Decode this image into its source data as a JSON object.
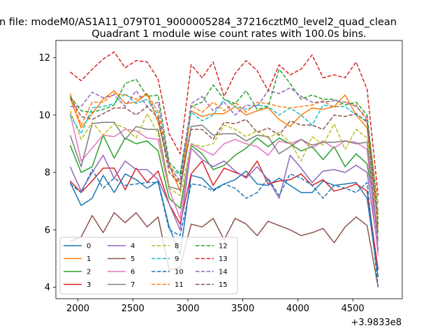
{
  "suptitle": "n file: modeM0/AS1A11_079T01_9000005284_37216cztM0_level2_quad_clean",
  "chart_data": {
    "type": "line",
    "title": "Quadrant 1 module wise count rates with 100.0s bins.",
    "xlabel": "",
    "ylabel": "",
    "x_offset_label": "+3.9833e8",
    "xlim": [
      1800,
      4950
    ],
    "ylim": [
      3.6,
      12.6
    ],
    "xticks": [
      "2000",
      "2500",
      "3000",
      "3500",
      "4000",
      "4500"
    ],
    "yticks": [
      "4",
      "6",
      "8",
      "10",
      "12"
    ],
    "grid": false,
    "legend_placement": "lower-left",
    "x": [
      1930,
      2030,
      2130,
      2230,
      2330,
      2430,
      2530,
      2630,
      2730,
      2830,
      2930,
      3030,
      3130,
      3230,
      3330,
      3430,
      3530,
      3630,
      3730,
      3830,
      3930,
      4030,
      4130,
      4230,
      4330,
      4430,
      4530,
      4630,
      4730
    ],
    "series": [
      {
        "name": "0",
        "color": "#1f77b4",
        "dash": "solid",
        "values": [
          7.65,
          6.85,
          7.1,
          7.9,
          7.3,
          7.95,
          7.75,
          7.45,
          7.7,
          6.1,
          5.15,
          7.9,
          7.8,
          7.4,
          7.6,
          7.75,
          8.05,
          7.6,
          7.55,
          7.8,
          7.55,
          7.3,
          7.3,
          7.7,
          7.55,
          7.6,
          7.65,
          7.1,
          4.35
        ]
      },
      {
        "name": "1",
        "color": "#ff7f0e",
        "dash": "solid",
        "values": [
          10.6,
          9.55,
          10.05,
          10.55,
          10.85,
          10.4,
          10.45,
          10.75,
          9.75,
          8.25,
          7.35,
          10.15,
          9.95,
          10.05,
          10.05,
          10.3,
          10.0,
          10.15,
          10.25,
          9.85,
          9.6,
          10.0,
          10.25,
          10.2,
          10.3,
          10.7,
          10.0,
          9.55,
          6.1
        ]
      },
      {
        "name": "2",
        "color": "#2ca02c",
        "dash": "solid",
        "values": [
          8.95,
          8.0,
          8.2,
          9.3,
          8.5,
          9.2,
          9.0,
          9.1,
          8.75,
          7.1,
          6.75,
          8.95,
          8.65,
          8.1,
          8.25,
          8.6,
          8.85,
          9.2,
          8.9,
          9.2,
          9.0,
          8.75,
          8.9,
          8.45,
          8.9,
          8.2,
          8.65,
          8.3,
          5.9
        ]
      },
      {
        "name": "3",
        "color": "#d62728",
        "dash": "solid",
        "values": [
          7.7,
          7.3,
          7.7,
          8.15,
          8.15,
          7.4,
          8.15,
          7.65,
          8.05,
          6.9,
          6.2,
          7.95,
          8.4,
          7.55,
          8.15,
          8.0,
          7.85,
          8.4,
          7.6,
          7.7,
          7.75,
          7.95,
          7.55,
          7.75,
          7.35,
          7.45,
          7.6,
          7.35,
          4.6
        ]
      },
      {
        "name": "4",
        "color": "#9467bd",
        "dash": "solid",
        "values": [
          8.2,
          7.35,
          8.0,
          8.6,
          7.8,
          8.4,
          8.1,
          8.1,
          7.75,
          6.9,
          6.0,
          8.85,
          8.45,
          8.2,
          8.4,
          8.05,
          7.8,
          8.2,
          7.75,
          7.1,
          8.6,
          8.15,
          7.65,
          8.05,
          8.1,
          8.0,
          8.25,
          8.0,
          5.3
        ]
      },
      {
        "name": "5",
        "color": "#8c564b",
        "dash": "solid",
        "values": [
          5.6,
          5.75,
          6.5,
          5.9,
          6.6,
          6.25,
          6.6,
          6.1,
          6.45,
          4.6,
          4.7,
          6.2,
          6.1,
          6.4,
          5.65,
          6.4,
          6.2,
          5.8,
          6.3,
          6.15,
          6.0,
          5.8,
          5.9,
          6.05,
          5.55,
          6.1,
          6.45,
          6.15,
          4.0
        ]
      },
      {
        "name": "6",
        "color": "#e377c2",
        "dash": "solid",
        "values": [
          10.05,
          8.4,
          8.85,
          9.3,
          9.25,
          9.5,
          9.45,
          9.2,
          9.15,
          7.4,
          6.4,
          9.0,
          8.8,
          8.6,
          9.0,
          9.15,
          9.0,
          8.9,
          8.6,
          9.1,
          9.0,
          9.15,
          8.85,
          9.1,
          8.85,
          9.1,
          9.05,
          8.8,
          5.1
        ]
      },
      {
        "name": "7",
        "color": "#7f7f7f",
        "dash": "solid",
        "values": [
          9.3,
          8.2,
          9.7,
          9.75,
          9.75,
          9.15,
          9.6,
          9.5,
          9.5,
          7.5,
          7.4,
          9.6,
          9.65,
          9.3,
          9.35,
          9.35,
          9.1,
          9.3,
          9.25,
          8.65,
          8.9,
          9.15,
          8.95,
          9.05,
          9.05,
          9.1,
          9.0,
          9.05,
          5.6
        ]
      },
      {
        "name": "8",
        "color": "#bcbd22",
        "dash": "dashed",
        "values": [
          10.15,
          9.15,
          9.75,
          9.3,
          9.7,
          9.55,
          9.2,
          10.05,
          9.35,
          7.45,
          7.2,
          9.0,
          8.9,
          9.0,
          9.65,
          9.5,
          9.25,
          9.45,
          9.2,
          9.4,
          9.05,
          8.4,
          9.25,
          8.95,
          9.7,
          8.8,
          9.5,
          9.2,
          6.4
        ]
      },
      {
        "name": "9",
        "color": "#17becf",
        "dash": "dashed",
        "values": [
          10.0,
          9.35,
          10.25,
          10.3,
          10.4,
          10.75,
          10.4,
          10.55,
          10.0,
          8.2,
          7.9,
          10.1,
          9.8,
          10.0,
          10.55,
          10.3,
          10.2,
          10.35,
          10.3,
          10.0,
          10.25,
          10.0,
          9.65,
          10.35,
          10.3,
          10.3,
          10.0,
          9.8,
          6.2
        ]
      },
      {
        "name": "10",
        "color": "#1f77b4",
        "dash": "dashed",
        "values": [
          7.6,
          7.3,
          8.1,
          7.45,
          7.8,
          7.55,
          7.6,
          7.65,
          7.65,
          6.0,
          5.8,
          7.6,
          7.55,
          7.35,
          7.6,
          7.45,
          7.1,
          7.3,
          7.8,
          7.2,
          7.95,
          7.8,
          7.55,
          7.1,
          7.55,
          7.45,
          7.3,
          7.65,
          4.0
        ]
      },
      {
        "name": "11",
        "color": "#ff7f0e",
        "dash": "dashed",
        "values": [
          10.75,
          9.65,
          10.45,
          10.45,
          10.75,
          10.7,
          10.55,
          10.75,
          10.1,
          8.3,
          7.6,
          10.35,
          10.1,
          10.45,
          10.15,
          10.45,
          10.1,
          10.45,
          10.4,
          10.3,
          10.25,
          10.3,
          10.35,
          10.5,
          10.25,
          10.45,
          10.35,
          9.8,
          6.9
        ]
      },
      {
        "name": "12",
        "color": "#2ca02c",
        "dash": "dashed",
        "values": [
          10.65,
          10.15,
          10.1,
          10.2,
          10.35,
          11.1,
          11.25,
          10.65,
          10.7,
          8.35,
          7.95,
          10.3,
          10.45,
          11.05,
          10.55,
          10.4,
          10.85,
          10.2,
          10.3,
          11.6,
          11.1,
          10.55,
          10.7,
          10.55,
          10.55,
          10.35,
          10.45,
          10.0,
          6.55
        ]
      },
      {
        "name": "13",
        "color": "#d62728",
        "dash": "dashed",
        "values": [
          11.5,
          11.2,
          11.6,
          11.95,
          12.2,
          11.65,
          11.9,
          11.85,
          11.25,
          9.35,
          8.65,
          11.75,
          11.3,
          11.85,
          10.65,
          11.45,
          11.9,
          11.55,
          10.85,
          11.75,
          11.4,
          11.6,
          12.1,
          11.3,
          11.4,
          11.3,
          11.85,
          10.9,
          7.2
        ]
      },
      {
        "name": "14",
        "color": "#9467bd",
        "dash": "dashed",
        "values": [
          10.3,
          10.3,
          10.8,
          10.6,
          10.7,
          10.3,
          10.85,
          10.3,
          10.45,
          8.2,
          7.7,
          10.4,
          10.65,
          10.15,
          10.45,
          10.0,
          10.35,
          10.3,
          10.85,
          10.75,
          10.95,
          10.65,
          10.45,
          10.45,
          10.5,
          10.45,
          10.3,
          9.9,
          5.25
        ]
      },
      {
        "name": "15",
        "color": "#8c564b",
        "dash": "dashed",
        "values": [
          10.6,
          9.95,
          9.85,
          10.05,
          10.25,
          10.25,
          10.0,
          10.3,
          9.9,
          8.0,
          7.6,
          9.5,
          9.5,
          9.15,
          9.75,
          9.7,
          9.85,
          9.4,
          9.55,
          9.3,
          9.8,
          9.65,
          9.65,
          9.5,
          10.0,
          9.95,
          10.05,
          9.75,
          6.2
        ]
      }
    ]
  }
}
